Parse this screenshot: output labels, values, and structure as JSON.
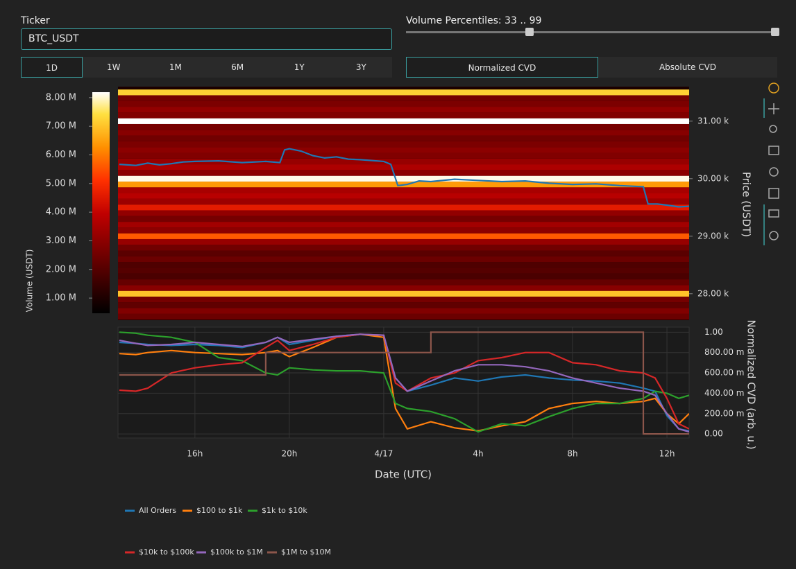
{
  "controls": {
    "ticker_label": "Ticker",
    "ticker_value": "BTC_USDT",
    "percentiles_label": "Volume Percentiles: 33 .. 99",
    "periods": [
      "1D",
      "1W",
      "1M",
      "6M",
      "1Y",
      "3Y"
    ],
    "selected_period": 0,
    "cvd_modes": [
      "Normalized CVD",
      "Absolute CVD"
    ],
    "selected_mode": 0
  },
  "chart_data": [
    {
      "type": "heatmap",
      "y_label": "Price (USDT)",
      "colorbar_label": "Volume (USDT)",
      "xlim": [
        12.74,
        36.94
      ],
      "ylim": [
        27540,
        31600
      ],
      "yticks": [
        {
          "value": 28000,
          "label": "28.00 k"
        },
        {
          "value": 29000,
          "label": "29.00 k"
        },
        {
          "value": 30000,
          "label": "30.00 k"
        },
        {
          "value": 31000,
          "label": "31.00 k"
        }
      ],
      "colorbar_lim": [
        470000,
        8190000
      ],
      "colorbar_ticks": [
        {
          "value": 1000000,
          "label": "1.00 M"
        },
        {
          "value": 2000000,
          "label": "2.00 M"
        },
        {
          "value": 3000000,
          "label": "3.00 M"
        },
        {
          "value": 4000000,
          "label": "4.00 M"
        },
        {
          "value": 5000000,
          "label": "5.00 M"
        },
        {
          "value": 6000000,
          "label": "6.00 M"
        },
        {
          "value": 7000000,
          "label": "7.00 M"
        },
        {
          "value": 8000000,
          "label": "8.00 M"
        }
      ],
      "price_levels": [
        27600,
        27700,
        27800,
        27900,
        28000,
        28100,
        28200,
        28300,
        28400,
        28500,
        28600,
        28700,
        28800,
        28900,
        29000,
        29100,
        29200,
        29300,
        29400,
        29500,
        29600,
        29700,
        29800,
        29900,
        30000,
        30100,
        30200,
        30300,
        30400,
        30500,
        30600,
        30700,
        30800,
        30900,
        31000,
        31100,
        31200,
        31300,
        31400,
        31500
      ],
      "volumes": [
        2400000,
        2800000,
        2200000,
        2600000,
        7000000,
        2900000,
        2300000,
        1800000,
        2000000,
        1900000,
        2400000,
        2100000,
        2500000,
        3200000,
        5600000,
        3000000,
        3400000,
        2600000,
        3100000,
        4600000,
        3300000,
        3800000,
        3500000,
        6400000,
        8100000,
        3000000,
        3600000,
        3200000,
        2800000,
        3000000,
        2700000,
        2500000,
        2900000,
        2600000,
        8200000,
        2800000,
        3100000,
        2700000,
        2600000,
        7200000
      ],
      "price_line": {
        "color": "#1f77b4",
        "x": [
          12.8,
          13.5,
          14.0,
          14.5,
          15.0,
          15.5,
          16.0,
          17.0,
          18.0,
          19.0,
          19.6,
          19.8,
          20.0,
          20.5,
          21.0,
          21.5,
          22.0,
          22.5,
          23.0,
          24.0,
          24.3,
          24.6,
          25.0,
          25.5,
          26.0,
          27.0,
          28.0,
          29.0,
          30.0,
          31.0,
          32.0,
          33.0,
          34.0,
          35.0,
          35.2,
          35.6,
          36.0,
          36.5,
          36.94
        ],
        "values": [
          30250,
          30230,
          30270,
          30240,
          30260,
          30290,
          30300,
          30310,
          30280,
          30300,
          30280,
          30500,
          30520,
          30480,
          30400,
          30360,
          30380,
          30340,
          30330,
          30300,
          30250,
          29880,
          29900,
          29960,
          29950,
          29990,
          29970,
          29950,
          29960,
          29920,
          29900,
          29910,
          29880,
          29860,
          29560,
          29560,
          29540,
          29510,
          29520
        ]
      }
    },
    {
      "type": "line",
      "x_label": "Date (UTC)",
      "y_label": "Normalized CVD (arb. u.)",
      "xlim": [
        12.74,
        36.94
      ],
      "xticks": [
        {
          "value": 16,
          "label": "16h"
        },
        {
          "value": 20,
          "label": "20h"
        },
        {
          "value": 24,
          "label": "4/17"
        },
        {
          "value": 28,
          "label": "4h"
        },
        {
          "value": 32,
          "label": "8h"
        },
        {
          "value": 36,
          "label": "12h"
        }
      ],
      "ylim": [
        -0.04,
        1.05
      ],
      "yticks": [
        {
          "value": 0,
          "label": "0.00"
        },
        {
          "value": 0.2,
          "label": "200.00 m"
        },
        {
          "value": 0.4,
          "label": "400.00 m"
        },
        {
          "value": 0.6,
          "label": "600.00 m"
        },
        {
          "value": 0.8,
          "label": "800.00 m"
        },
        {
          "value": 1,
          "label": "1.00"
        }
      ],
      "grid": true,
      "legend": "bottom",
      "x": [
        12.8,
        13.5,
        14,
        15,
        16,
        17,
        18,
        19,
        19.5,
        20,
        21,
        22,
        23,
        24,
        24.5,
        25,
        26,
        27,
        28,
        29,
        30,
        31,
        32,
        33,
        34,
        35,
        35.5,
        36,
        36.5,
        36.94
      ],
      "series": [
        {
          "name": "All Orders",
          "color": "#1f77b4",
          "values": [
            0.9,
            0.89,
            0.88,
            0.87,
            0.88,
            0.87,
            0.85,
            0.9,
            0.95,
            0.88,
            0.92,
            0.96,
            0.98,
            0.97,
            0.55,
            0.42,
            0.48,
            0.55,
            0.52,
            0.56,
            0.58,
            0.55,
            0.53,
            0.52,
            0.5,
            0.45,
            0.42,
            0.18,
            0.05,
            0.03
          ]
        },
        {
          "name": "$100 to $1k",
          "color": "#ff7f0e",
          "values": [
            0.79,
            0.78,
            0.8,
            0.82,
            0.8,
            0.79,
            0.78,
            0.8,
            0.82,
            0.76,
            0.85,
            0.95,
            0.98,
            0.95,
            0.25,
            0.05,
            0.12,
            0.06,
            0.03,
            0.08,
            0.12,
            0.25,
            0.3,
            0.32,
            0.3,
            0.32,
            0.35,
            0.2,
            0.1,
            0.2
          ]
        },
        {
          "name": "$1k to $10k",
          "color": "#2ca02c",
          "values": [
            1.0,
            0.99,
            0.97,
            0.95,
            0.9,
            0.75,
            0.72,
            0.6,
            0.58,
            0.65,
            0.63,
            0.62,
            0.62,
            0.6,
            0.3,
            0.25,
            0.22,
            0.15,
            0.02,
            0.1,
            0.08,
            0.17,
            0.25,
            0.3,
            0.3,
            0.35,
            0.42,
            0.4,
            0.35,
            0.38
          ]
        },
        {
          "name": "$10k to $100k",
          "color": "#d62728",
          "values": [
            0.43,
            0.42,
            0.45,
            0.6,
            0.65,
            0.68,
            0.7,
            0.85,
            0.92,
            0.82,
            0.88,
            0.95,
            0.98,
            0.97,
            0.5,
            0.42,
            0.55,
            0.6,
            0.72,
            0.75,
            0.8,
            0.8,
            0.7,
            0.68,
            0.62,
            0.6,
            0.55,
            0.35,
            0.1,
            0.05
          ]
        },
        {
          "name": "$100k to $1M",
          "color": "#9467bd",
          "values": [
            0.92,
            0.89,
            0.87,
            0.88,
            0.9,
            0.88,
            0.86,
            0.9,
            0.95,
            0.9,
            0.93,
            0.96,
            0.98,
            0.97,
            0.55,
            0.42,
            0.52,
            0.62,
            0.68,
            0.68,
            0.66,
            0.62,
            0.55,
            0.5,
            0.45,
            0.42,
            0.38,
            0.2,
            0.05,
            0.02
          ]
        },
        {
          "name": "$1M to $10M",
          "color": "#8c564b",
          "shape": "hv",
          "values": [
            0.58,
            0.58,
            0.58,
            0.58,
            0.58,
            0.58,
            0.58,
            0.8,
            0.8,
            0.8,
            0.8,
            0.8,
            0.8,
            0.8,
            0.8,
            0.8,
            1.0,
            1.0,
            1.0,
            1.0,
            1.0,
            1.0,
            1.0,
            1.0,
            1.0,
            0.0,
            0.0,
            0.0,
            0.0,
            0.0
          ]
        }
      ]
    }
  ]
}
